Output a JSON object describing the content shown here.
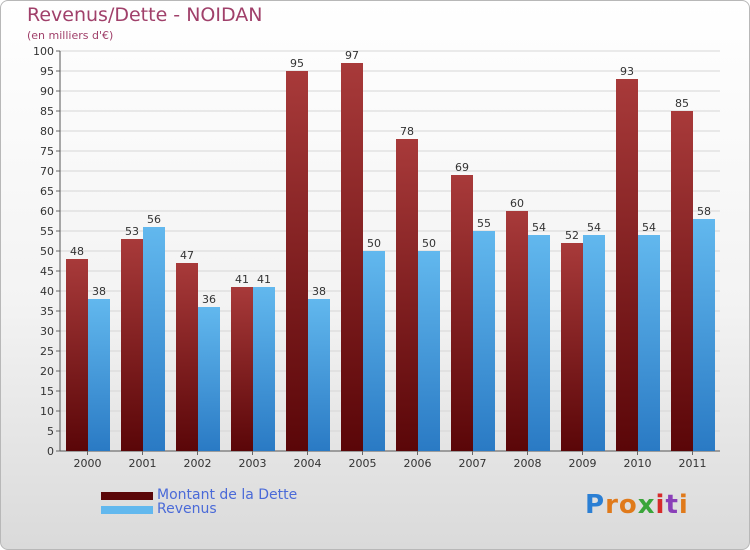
{
  "title": "Revenus/Dette - NOIDAN",
  "subtitle": "(en milliers d'€)",
  "logo_text": "Proxiti",
  "colors": {
    "dette_dark": "#5a0608",
    "dette_light": "#a83a3a",
    "revenus_dark": "#2a7ac4",
    "revenus_light": "#62b8ee"
  },
  "chart_data": {
    "type": "bar",
    "categories": [
      "2000",
      "2001",
      "2002",
      "2003",
      "2004",
      "2005",
      "2006",
      "2007",
      "2008",
      "2009",
      "2010",
      "2011"
    ],
    "series": [
      {
        "name": "Montant de la Dette",
        "values": [
          48,
          53,
          47,
          41,
          95,
          97,
          78,
          69,
          60,
          52,
          93,
          85
        ]
      },
      {
        "name": "Revenus",
        "values": [
          38,
          56,
          36,
          41,
          38,
          50,
          50,
          55,
          54,
          54,
          54,
          58
        ]
      }
    ],
    "ylim": [
      0,
      100
    ],
    "ytick_step": 5,
    "grid": true,
    "legend_position": "bottom-left"
  }
}
